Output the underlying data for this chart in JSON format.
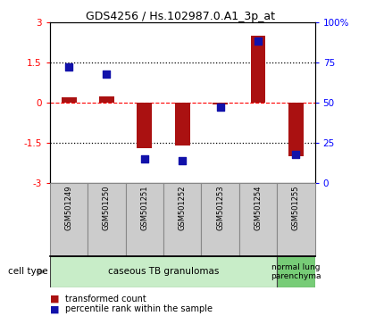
{
  "title": "GDS4256 / Hs.102987.0.A1_3p_at",
  "samples": [
    "GSM501249",
    "GSM501250",
    "GSM501251",
    "GSM501252",
    "GSM501253",
    "GSM501254",
    "GSM501255"
  ],
  "transformed_count": [
    0.2,
    0.25,
    -1.7,
    -1.6,
    -0.05,
    2.5,
    -2.0
  ],
  "percentile_rank": [
    72,
    68,
    15,
    14,
    47,
    88,
    18
  ],
  "bar_color": "#aa1111",
  "dot_color": "#1111aa",
  "left_ylim": [
    -3,
    3
  ],
  "left_yticks": [
    -3,
    -1.5,
    0,
    1.5,
    3
  ],
  "right_yticks": [
    0,
    25,
    50,
    75,
    100
  ],
  "right_yticklabels": [
    "0",
    "25",
    "50",
    "75",
    "100%"
  ],
  "hline_dotted_vals": [
    1.5,
    -1.5
  ],
  "hline_dashed_val": 0,
  "group1_label": "caseous TB granulomas",
  "group1_n": 6,
  "group2_label": "normal lung\nparenchyma",
  "group2_n": 1,
  "group1_color": "#c8edc8",
  "group2_color": "#77cc77",
  "sample_box_color": "#cccccc",
  "cell_type_label": "cell type",
  "legend1_label": "transformed count",
  "legend2_label": "percentile rank within the sample",
  "background_color": "#ffffff"
}
